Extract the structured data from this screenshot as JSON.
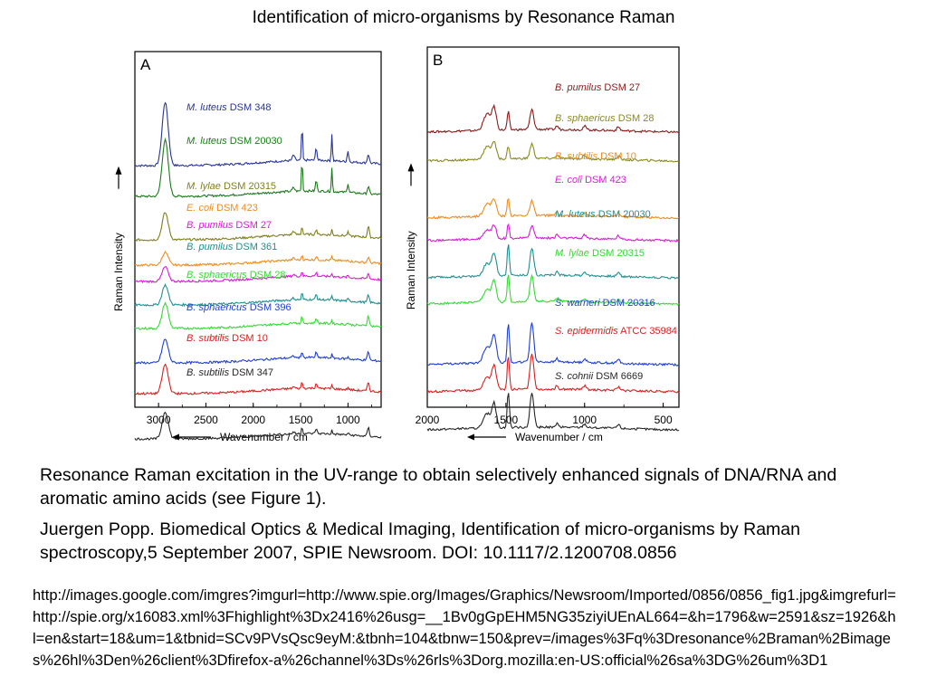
{
  "slide": {
    "title": "Identification of micro-organisms by Resonance Raman",
    "caption_line1": "Resonance Raman excitation in the UV-range to obtain selectively enhanced signals of DNA/RNA and aromatic amino acids (see Figure 1).",
    "caption_line2": "Juergen Popp. Biomedical Optics & Medical Imaging, Identification of micro-organisms by Raman spectroscopy,5 September 2007, SPIE Newsroom. DOI: 10.1117/2.1200708.0856",
    "url": "http://images.google.com/imgres?imgurl=http://www.spie.org/Images/Graphics/Newsroom/Imported/0856/0856_fig1.jpg&imgrefurl=http://spie.org/x16083.xml%3Fhighlight%3Dx2416%26usg=__1Bv0gGpEHM5NG35ziyiUEnAL664=&h=1796&w=2591&sz=1926&hl=en&start=18&um=1&tbnid=SCv9PVsQsc9eyM:&tbnh=104&tbnw=150&prev=/images%3Fq%3Dresonance%2Braman%2Bimages%26hl%3Den%26client%3Dfirefox-a%26channel%3Ds%26rls%3Dorg.mozilla:en-US:official%26sa%3DG%26um%3D1"
  },
  "chart_data": [
    {
      "type": "line",
      "panel": "A",
      "xlabel": "Wavenumber / cm",
      "xlabel_sup": "-1",
      "ylabel": "Raman Intensity",
      "xlim": [
        3250,
        650
      ],
      "x_reversed": true,
      "x_ticks": [
        3000,
        2500,
        2000,
        1500,
        1000
      ],
      "peaks": [
        2930,
        1575,
        1485,
        1335,
        1170,
        1000,
        785
      ],
      "series": [
        {
          "name": "M. luteus",
          "strain": "DSM 348",
          "color": "#283593"
        },
        {
          "name": "M. luteus",
          "strain": "DSM 20030",
          "color": "#1b7a1b"
        },
        {
          "name": "M. lylae",
          "strain": "DSM 20315",
          "color": "#7f7f1f"
        },
        {
          "name": "E. coli",
          "strain": "DSM 423",
          "color": "#ee8c1f"
        },
        {
          "name": "B. pumilus",
          "strain": "DSM 27",
          "color": "#d81bd8"
        },
        {
          "name": "B. pumilus",
          "strain": "DSM 361",
          "color": "#1f8f8f"
        },
        {
          "name": "B. sphaericus",
          "strain": "DSM 28",
          "color": "#35d935"
        },
        {
          "name": "B. sphaericus",
          "strain": "DSM 396",
          "color": "#1f3fcf"
        },
        {
          "name": "B. subtilis",
          "strain": "DSM 10",
          "color": "#d92020"
        },
        {
          "name": "B. subtilis",
          "strain": "DSM 347",
          "color": "#262626"
        }
      ]
    },
    {
      "type": "line",
      "panel": "B",
      "xlabel": "Wavenumber / cm",
      "xlabel_sup": "-1",
      "ylabel": "Raman Intensity",
      "xlim": [
        2000,
        400
      ],
      "x_reversed": true,
      "x_ticks": [
        2000,
        1500,
        1000,
        500
      ],
      "peaks": [
        1620,
        1575,
        1485,
        1335,
        1175,
        1000,
        785
      ],
      "series": [
        {
          "name": "B. pumilus",
          "strain": "DSM 27",
          "color": "#8b1a1a"
        },
        {
          "name": "B. sphaericus",
          "strain": "DSM 28",
          "color": "#8a8a20"
        },
        {
          "name": "B. subtilis",
          "strain": "DSM 10",
          "color": "#ee8c1f"
        },
        {
          "name": "E. coli",
          "strain": "DSM 423",
          "color": "#d81bd8"
        },
        {
          "name": "M. luteus",
          "strain": "DSM 20030",
          "color": "#1f8f8f"
        },
        {
          "name": "M. lylae",
          "strain": "DSM 20315",
          "color": "#35d935"
        },
        {
          "name": "S. warneri",
          "strain": "DSM 20316",
          "color": "#1f3fcf"
        },
        {
          "name": "S. epidermidis",
          "strain": "ATCC 35984",
          "color": "#d92020"
        },
        {
          "name": "S. cohnii",
          "strain": "DSM 6669",
          "color": "#262626"
        }
      ]
    }
  ]
}
